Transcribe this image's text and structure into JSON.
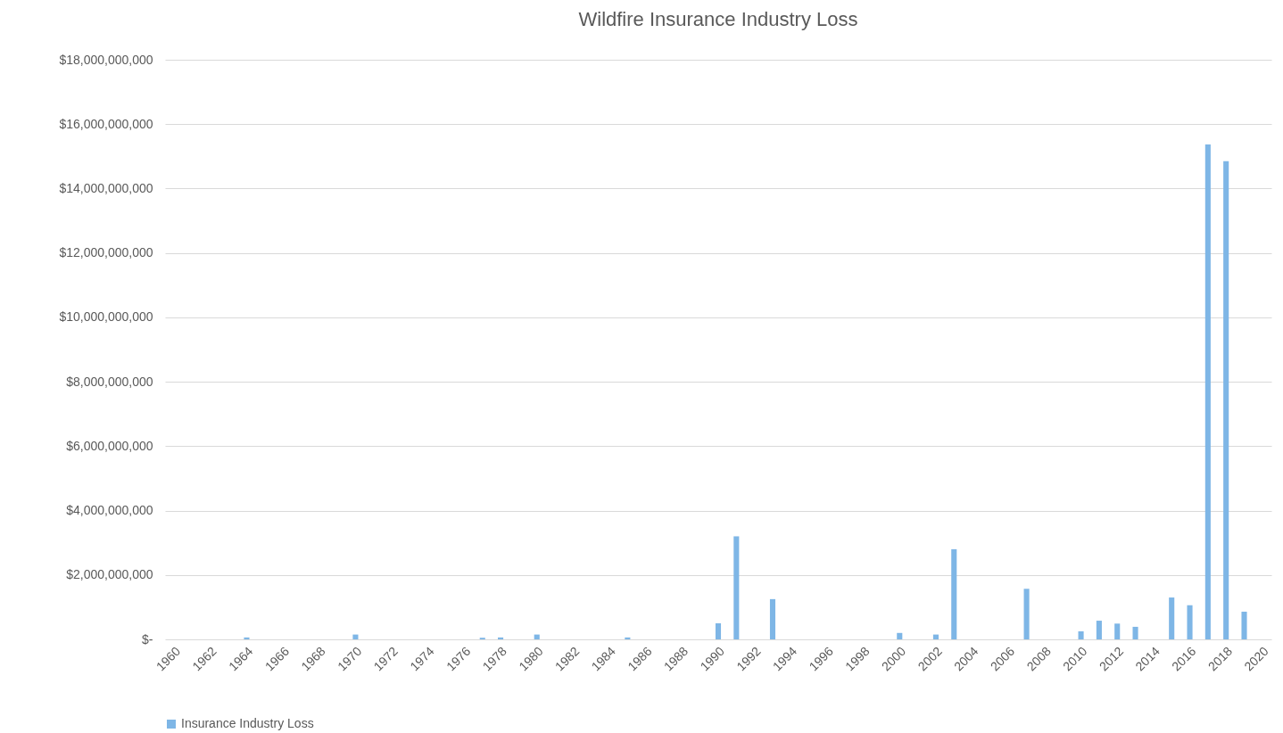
{
  "chart_data": {
    "type": "bar",
    "title": "Wildfire Insurance Industry Loss",
    "categories": [
      "1960",
      null,
      "1962",
      null,
      "1964",
      null,
      "1966",
      null,
      "1968",
      null,
      "1970",
      null,
      "1972",
      null,
      "1974",
      null,
      "1976",
      null,
      "1978",
      null,
      "1980",
      null,
      "1982",
      null,
      "1984",
      null,
      "1986",
      null,
      "1988",
      null,
      "1990",
      null,
      "1992",
      null,
      "1994",
      null,
      "1996",
      null,
      "1998",
      null,
      "2000",
      null,
      "2002",
      null,
      "2004",
      null,
      "2006",
      null,
      "2008",
      null,
      "2010",
      null,
      "2012",
      null,
      "2014",
      null,
      "2016",
      null,
      "2018",
      null,
      "2020"
    ],
    "series": [
      {
        "name": "Insurance Industry Loss",
        "color": "#7eb6e6",
        "values": [
          null,
          null,
          null,
          null,
          60000000,
          null,
          null,
          null,
          null,
          null,
          150000000,
          null,
          null,
          null,
          null,
          null,
          null,
          50000000,
          60000000,
          null,
          150000000,
          null,
          null,
          null,
          null,
          60000000,
          null,
          null,
          null,
          null,
          500000000,
          3200000000,
          null,
          1250000000,
          null,
          null,
          null,
          null,
          null,
          null,
          200000000,
          null,
          150000000,
          2800000000,
          null,
          null,
          null,
          1570000000,
          null,
          null,
          250000000,
          580000000,
          490000000,
          390000000,
          null,
          1300000000,
          1060000000,
          15370000000,
          14850000000,
          860000000,
          null
        ]
      }
    ],
    "ylim": [
      0,
      18000000000
    ],
    "yticks": [
      {
        "value": 0,
        "label": "$-"
      },
      {
        "value": 2000000000,
        "label": "$2,000,000,000"
      },
      {
        "value": 4000000000,
        "label": "$4,000,000,000"
      },
      {
        "value": 6000000000,
        "label": "$6,000,000,000"
      },
      {
        "value": 8000000000,
        "label": "$8,000,000,000"
      },
      {
        "value": 10000000000,
        "label": "$10,000,000,000"
      },
      {
        "value": 12000000000,
        "label": "$12,000,000,000"
      },
      {
        "value": 14000000000,
        "label": "$14,000,000,000"
      },
      {
        "value": 16000000000,
        "label": "$16,000,000,000"
      },
      {
        "value": 18000000000,
        "label": "$18,000,000,000"
      }
    ],
    "grid": "y",
    "legend": "bottom"
  }
}
